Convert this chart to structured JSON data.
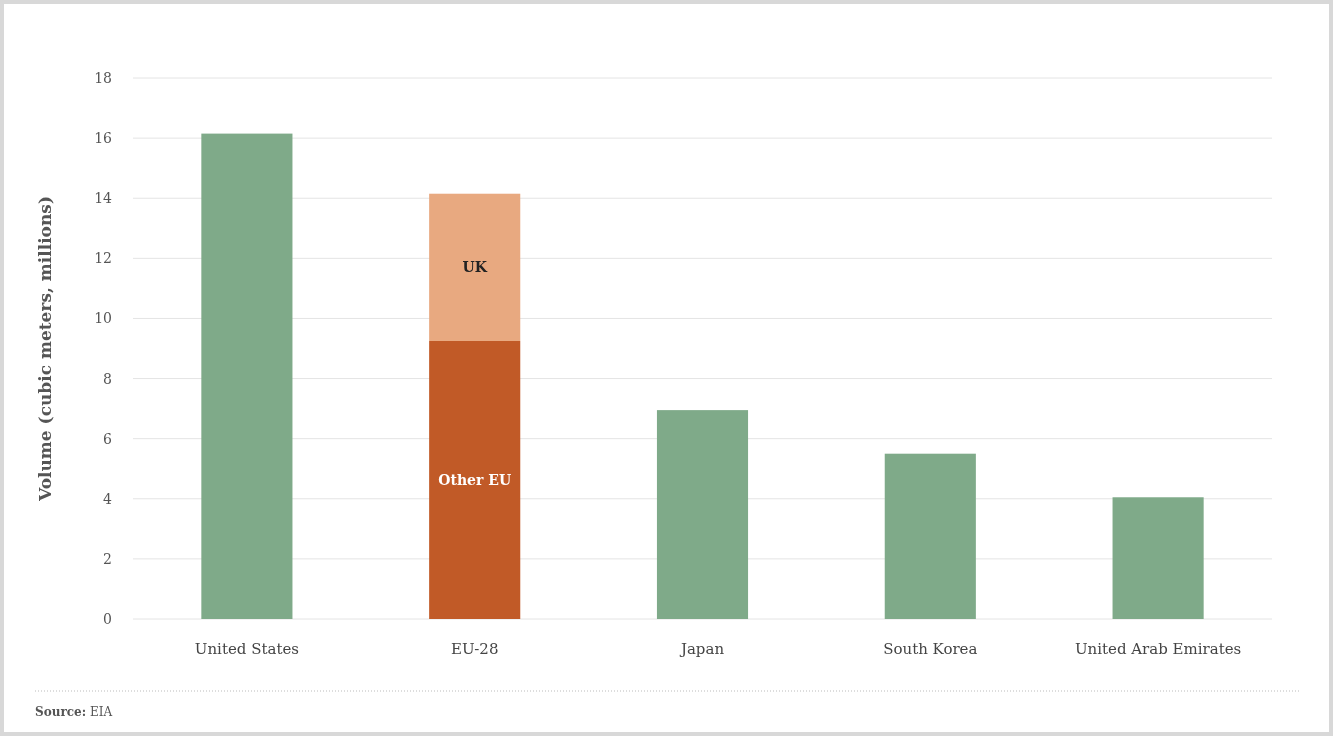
{
  "chart_data": {
    "type": "bar",
    "stacked": true,
    "ylabel": "Volume (cubic meters, millions)",
    "categories": [
      "United States",
      "EU-28",
      "Japan",
      "South Korea",
      "United Arab Emirates"
    ],
    "series": [
      {
        "color": "#7faa89",
        "values": [
          16.15,
          null,
          6.95,
          5.5,
          4.05
        ]
      },
      {
        "name": "Other EU",
        "color": "#c15a27",
        "values": [
          null,
          9.25,
          null,
          null,
          null
        ]
      },
      {
        "name": "UK",
        "color": "#e8a980",
        "values": [
          null,
          4.9,
          null,
          null,
          null
        ]
      }
    ],
    "ylim": [
      0,
      18
    ],
    "yticks": [
      0,
      2,
      4,
      6,
      8,
      10,
      12,
      14,
      16,
      18
    ],
    "grid": "y",
    "annotations": [
      "Source: EIA"
    ]
  }
}
